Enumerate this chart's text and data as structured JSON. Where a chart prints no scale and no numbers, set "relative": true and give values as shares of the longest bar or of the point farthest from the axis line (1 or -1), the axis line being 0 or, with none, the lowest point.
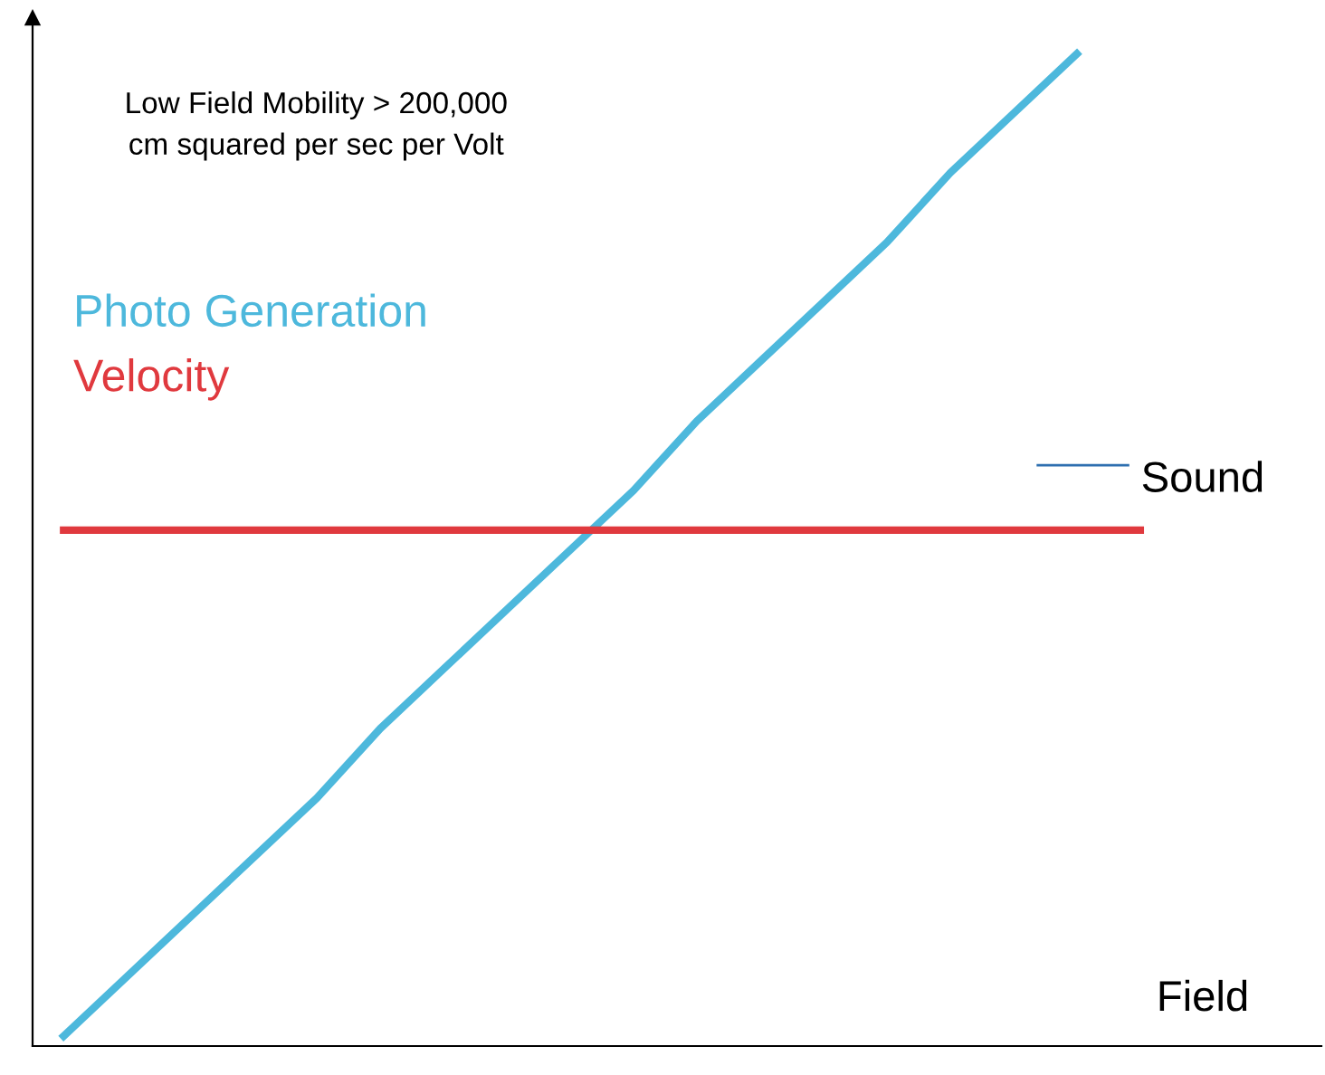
{
  "chart_data": {
    "type": "line",
    "relative": true,
    "xlabel": "Field",
    "categories": [
      null,
      null,
      null,
      null,
      null,
      null,
      null,
      null,
      null,
      null,
      null,
      null,
      null,
      null,
      null,
      null,
      null,
      null
    ],
    "series": [
      {
        "name": "Photo Generation",
        "color": "#4db8dc",
        "values": [
          0.01,
          0.07,
          0.13,
          0.19,
          0.25,
          0.32,
          0.38,
          0.44,
          0.5,
          0.56,
          0.63,
          0.69,
          0.75,
          0.81,
          0.88,
          0.94,
          1.0,
          null
        ]
      },
      {
        "name": "Velocity",
        "color": "#e0393e",
        "values": [
          0.52,
          0.52,
          0.52,
          0.52,
          0.52,
          0.52,
          0.52,
          0.52,
          0.52,
          0.52,
          0.52,
          0.52,
          0.52,
          0.52,
          0.52,
          0.52,
          0.52,
          0.52
        ]
      }
    ],
    "annotations": [
      "Low Field Mobility > 200,000\ncm squared per sec per Volt",
      "Sound"
    ],
    "legend": "left",
    "grid": false,
    "marker": "none",
    "line_style": "solid"
  }
}
